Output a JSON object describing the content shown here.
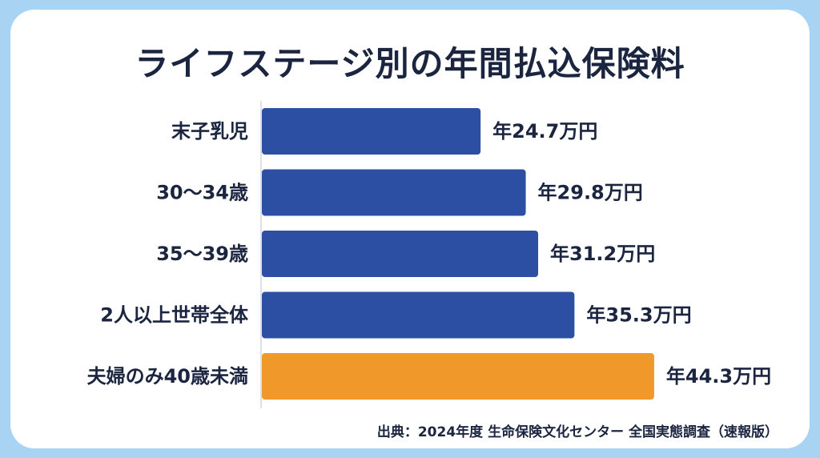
{
  "title": "ライフステージ別の年間払込保険料",
  "source": "出典：2024年度 生命保険文化センター 全国実態調査（速報版）",
  "colors": {
    "default": "#2c4fa3",
    "highlight": "#f0992a",
    "text": "#1b2540",
    "frame": "#a9d3f2"
  },
  "chart_data": {
    "type": "bar",
    "orientation": "horizontal",
    "title": "ライフステージ別の年間払込保険料",
    "unit": "万円",
    "categories": [
      "末子乳児",
      "30〜34歳",
      "35〜39歳",
      "2人以上世帯全体",
      "夫婦のみ40歳未満"
    ],
    "values": [
      24.7,
      29.8,
      31.2,
      35.3,
      44.3
    ],
    "value_labels": [
      "年24.7万円",
      "年29.8万円",
      "年31.2万円",
      "年35.3万円",
      "年44.3万円"
    ],
    "highlight_index": 4,
    "xlim": [
      0,
      51
    ],
    "grid": false,
    "legend": "none"
  }
}
